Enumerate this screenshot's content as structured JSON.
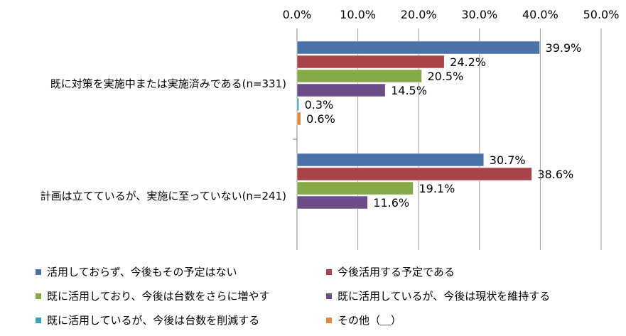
{
  "chart_data": {
    "type": "bar",
    "orientation": "horizontal",
    "xlim": [
      0,
      50
    ],
    "x_ticks": [
      "0.0%",
      "10.0%",
      "20.0%",
      "30.0%",
      "40.0%",
      "50.0%"
    ],
    "grid": true,
    "x_axis_position": "top",
    "legend_position": "bottom",
    "categories": [
      "既に対策を実施中または実施済みである(n=331)",
      "計画は立てているが、実施に至っていない(n=241)"
    ],
    "series": [
      {
        "name": "活用しておらず、今後もその予定はない",
        "color": "#4a72a8",
        "values": [
          39.9,
          30.7
        ],
        "labels": [
          "39.9%",
          "30.7%"
        ]
      },
      {
        "name": "今後活用する予定である",
        "color": "#a8434a",
        "values": [
          24.2,
          38.6
        ],
        "labels": [
          "24.2%",
          "38.6%"
        ]
      },
      {
        "name": "既に活用しており、今後は台数をさらに増やす",
        "color": "#86a948",
        "values": [
          20.5,
          19.1
        ],
        "labels": [
          "20.5%",
          "19.1%"
        ]
      },
      {
        "name": "既に活用しているが、今後は現状を維持する",
        "color": "#6c4d8a",
        "values": [
          14.5,
          11.6
        ],
        "labels": [
          "14.5%",
          "11.6%"
        ]
      },
      {
        "name": "既に活用しているが、今後は台数を削減する",
        "color": "#3fa0b8",
        "values": [
          0.3,
          null
        ],
        "labels": [
          "0.3%",
          null
        ]
      },
      {
        "name": "その他（＿）",
        "color": "#e08a3c",
        "values": [
          0.6,
          null
        ],
        "labels": [
          "0.6%",
          null
        ]
      }
    ]
  }
}
